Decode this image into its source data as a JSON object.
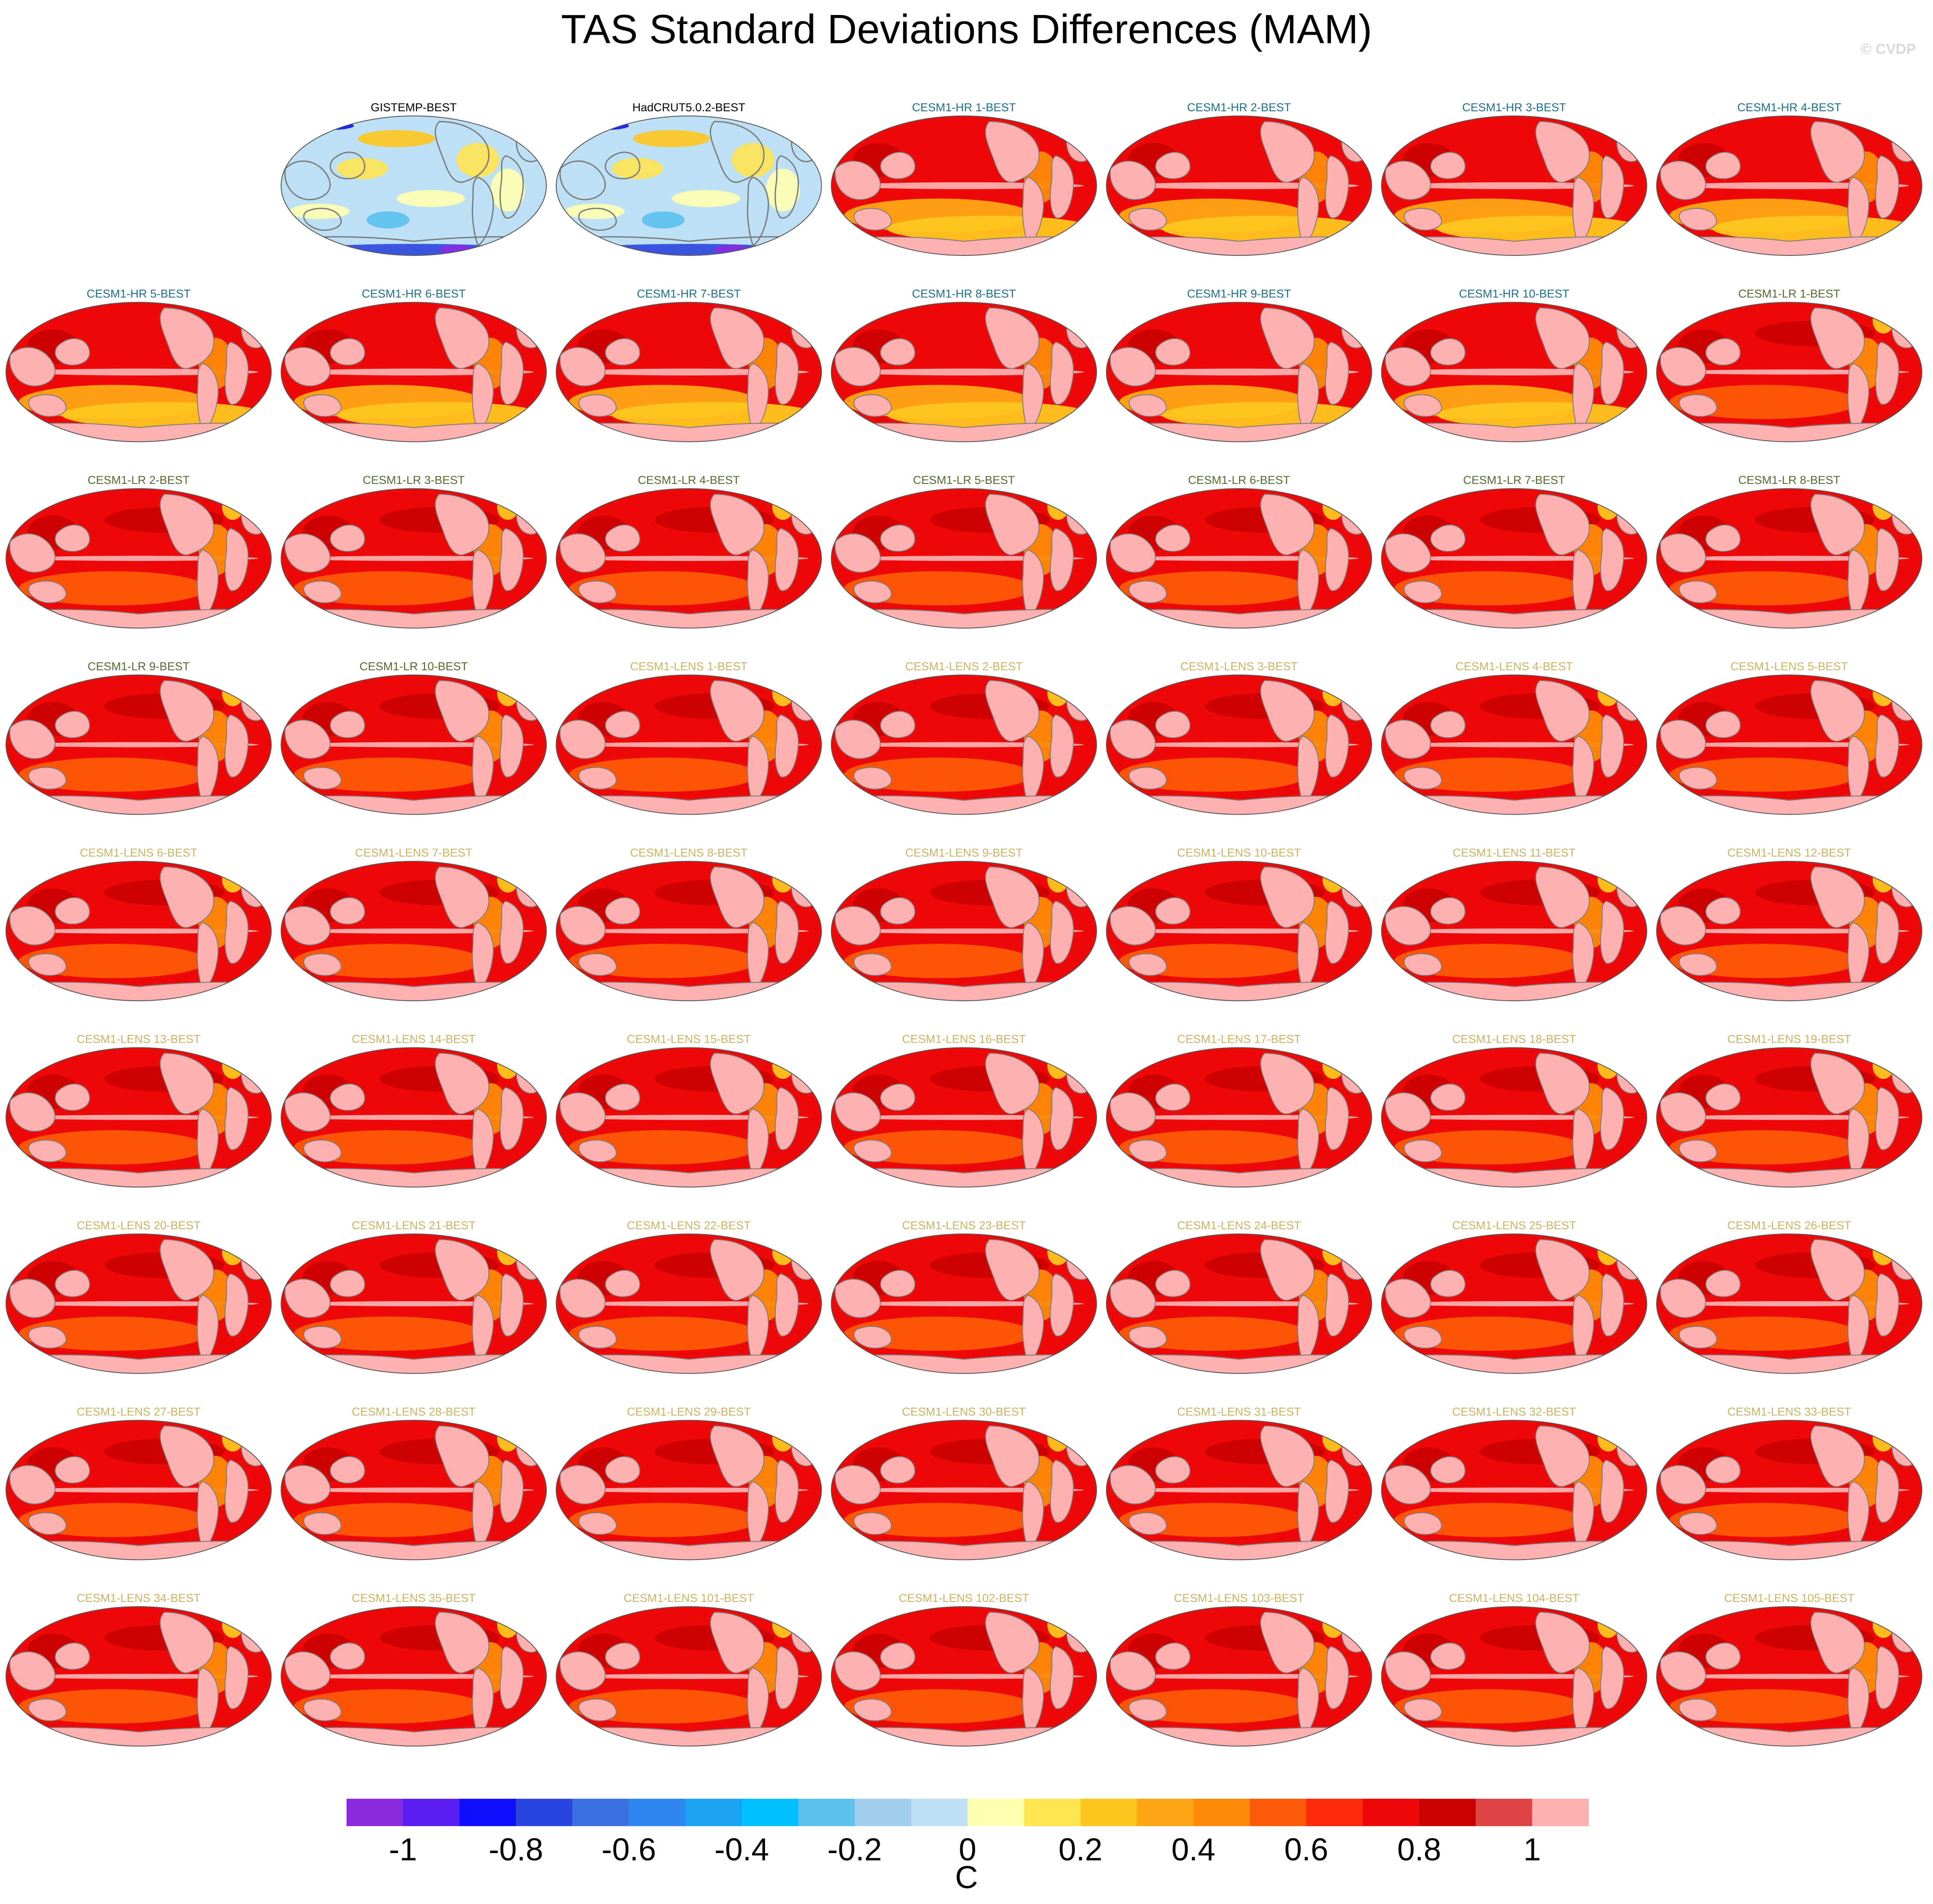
{
  "title": "TAS Standard Deviations Differences (MAM)",
  "watermark": "© CVDP",
  "chart_data": {
    "type": "heatmap",
    "title": "TAS Standard Deviations Differences (MAM)",
    "layout": "7 columns x 9 rows of global map panels (first cell empty)",
    "panels": [
      {
        "label": "GISTEMP-BEST",
        "group": "obs"
      },
      {
        "label": "HadCRUT5.0.2-BEST",
        "group": "obs"
      },
      {
        "label": "CESM1-HR 1-BEST",
        "group": "hr"
      },
      {
        "label": "CESM1-HR 2-BEST",
        "group": "hr"
      },
      {
        "label": "CESM1-HR 3-BEST",
        "group": "hr"
      },
      {
        "label": "CESM1-HR 4-BEST",
        "group": "hr"
      },
      {
        "label": "CESM1-HR 5-BEST",
        "group": "hr"
      },
      {
        "label": "CESM1-HR 6-BEST",
        "group": "hr"
      },
      {
        "label": "CESM1-HR 7-BEST",
        "group": "hr"
      },
      {
        "label": "CESM1-HR 8-BEST",
        "group": "hr"
      },
      {
        "label": "CESM1-HR 9-BEST",
        "group": "hr"
      },
      {
        "label": "CESM1-HR 10-BEST",
        "group": "hr"
      },
      {
        "label": "CESM1-LR 1-BEST",
        "group": "lr"
      },
      {
        "label": "CESM1-LR 2-BEST",
        "group": "lr"
      },
      {
        "label": "CESM1-LR 3-BEST",
        "group": "lr"
      },
      {
        "label": "CESM1-LR 4-BEST",
        "group": "lr"
      },
      {
        "label": "CESM1-LR 5-BEST",
        "group": "lr"
      },
      {
        "label": "CESM1-LR 6-BEST",
        "group": "lr"
      },
      {
        "label": "CESM1-LR 7-BEST",
        "group": "lr"
      },
      {
        "label": "CESM1-LR 8-BEST",
        "group": "lr"
      },
      {
        "label": "CESM1-LR 9-BEST",
        "group": "lr"
      },
      {
        "label": "CESM1-LR 10-BEST",
        "group": "lr"
      },
      {
        "label": "CESM1-LENS 1-BEST",
        "group": "lens"
      },
      {
        "label": "CESM1-LENS 2-BEST",
        "group": "lens"
      },
      {
        "label": "CESM1-LENS 3-BEST",
        "group": "lens"
      },
      {
        "label": "CESM1-LENS 4-BEST",
        "group": "lens"
      },
      {
        "label": "CESM1-LENS 5-BEST",
        "group": "lens"
      },
      {
        "label": "CESM1-LENS 6-BEST",
        "group": "lens"
      },
      {
        "label": "CESM1-LENS 7-BEST",
        "group": "lens"
      },
      {
        "label": "CESM1-LENS 8-BEST",
        "group": "lens"
      },
      {
        "label": "CESM1-LENS 9-BEST",
        "group": "lens"
      },
      {
        "label": "CESM1-LENS 10-BEST",
        "group": "lens"
      },
      {
        "label": "CESM1-LENS 11-BEST",
        "group": "lens"
      },
      {
        "label": "CESM1-LENS 12-BEST",
        "group": "lens"
      },
      {
        "label": "CESM1-LENS 13-BEST",
        "group": "lens"
      },
      {
        "label": "CESM1-LENS 14-BEST",
        "group": "lens"
      },
      {
        "label": "CESM1-LENS 15-BEST",
        "group": "lens"
      },
      {
        "label": "CESM1-LENS 16-BEST",
        "group": "lens"
      },
      {
        "label": "CESM1-LENS 17-BEST",
        "group": "lens"
      },
      {
        "label": "CESM1-LENS 18-BEST",
        "group": "lens"
      },
      {
        "label": "CESM1-LENS 19-BEST",
        "group": "lens"
      },
      {
        "label": "CESM1-LENS 20-BEST",
        "group": "lens"
      },
      {
        "label": "CESM1-LENS 21-BEST",
        "group": "lens"
      },
      {
        "label": "CESM1-LENS 22-BEST",
        "group": "lens"
      },
      {
        "label": "CESM1-LENS 23-BEST",
        "group": "lens"
      },
      {
        "label": "CESM1-LENS 24-BEST",
        "group": "lens"
      },
      {
        "label": "CESM1-LENS 25-BEST",
        "group": "lens"
      },
      {
        "label": "CESM1-LENS 26-BEST",
        "group": "lens"
      },
      {
        "label": "CESM1-LENS 27-BEST",
        "group": "lens"
      },
      {
        "label": "CESM1-LENS 28-BEST",
        "group": "lens"
      },
      {
        "label": "CESM1-LENS 29-BEST",
        "group": "lens"
      },
      {
        "label": "CESM1-LENS 30-BEST",
        "group": "lens"
      },
      {
        "label": "CESM1-LENS 31-BEST",
        "group": "lens"
      },
      {
        "label": "CESM1-LENS 32-BEST",
        "group": "lens"
      },
      {
        "label": "CESM1-LENS 33-BEST",
        "group": "lens"
      },
      {
        "label": "CESM1-LENS 34-BEST",
        "group": "lens"
      },
      {
        "label": "CESM1-LENS 35-BEST",
        "group": "lens"
      },
      {
        "label": "CESM1-LENS 101-BEST",
        "group": "lens"
      },
      {
        "label": "CESM1-LENS 102-BEST",
        "group": "lens"
      },
      {
        "label": "CESM1-LENS 103-BEST",
        "group": "lens"
      },
      {
        "label": "CESM1-LENS 104-BEST",
        "group": "lens"
      },
      {
        "label": "CESM1-LENS 105-BEST",
        "group": "lens"
      }
    ],
    "group_label_colors": {
      "obs": "#000000",
      "hr": "#1f6f8b",
      "lr": "#556b2f",
      "lens": "#c8b464"
    },
    "colorbar": {
      "label": "C",
      "tick_labels": [
        "-1",
        "-0.8",
        "-0.6",
        "-0.4",
        "-0.2",
        "0",
        "0.2",
        "0.4",
        "0.6",
        "0.8",
        "1"
      ],
      "range": [
        -1.1,
        1.1
      ],
      "step": 0.1,
      "colors": [
        "#8a2be2",
        "#5a1ef0",
        "#1010ff",
        "#2a46e0",
        "#3a6fe0",
        "#2e86f0",
        "#1aa3f0",
        "#00c0ff",
        "#5ac0f0",
        "#a0ccee",
        "#bde0f5",
        "#ffffb0",
        "#ffe350",
        "#ffc61e",
        "#ffa514",
        "#ff8a0a",
        "#ff5a0a",
        "#ff2a0a",
        "#ee0808",
        "#cc0000",
        "#dd4444",
        "#ffb0b0"
      ]
    },
    "palette": {
      "ocean_model": "#ee0808",
      "land_model": "#ffb0b0",
      "obs_background": "#bde0f5",
      "coastline": "#7a7a7a"
    }
  }
}
